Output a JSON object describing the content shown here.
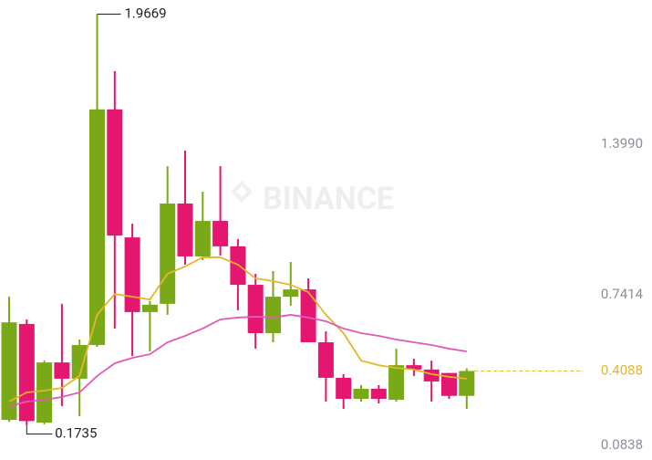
{
  "chart_data": {
    "type": "candlestick",
    "watermark": "BINANCE",
    "ylim": [
      0.0359,
      2.0288
    ],
    "yticks": [
      0.0838,
      0.7414,
      {
        "value": 1.399,
        "label": "1.3990"
      }
    ],
    "up_color": "#7aa918",
    "down_color": "#e5166f",
    "last_price_color": "#e8b52a",
    "open": [
      0.195,
      0.614,
      0.183,
      0.446,
      0.375,
      0.522,
      1.551,
      0.992,
      0.666,
      0.702,
      1.14,
      0.909,
      1.064,
      0.953,
      0.785,
      0.574,
      0.733,
      0.765,
      0.534,
      0.379,
      0.287,
      0.331,
      0.283,
      0.434,
      0.415,
      0.4,
      0.3
    ],
    "high": [
      0.733,
      0.634,
      0.454,
      0.702,
      0.546,
      1.9669,
      1.718,
      1.052,
      0.714,
      1.303,
      1.371,
      1.192,
      1.303,
      0.985,
      0.833,
      0.845,
      0.885,
      0.813,
      0.582,
      0.395,
      0.347,
      0.347,
      0.506,
      0.462,
      0.454,
      0.4,
      0.42
    ],
    "low": [
      0.187,
      0.1735,
      0.176,
      0.255,
      0.211,
      0.514,
      0.594,
      0.474,
      0.494,
      0.654,
      0.873,
      0.893,
      0.913,
      0.674,
      0.506,
      0.534,
      0.694,
      0.534,
      0.275,
      0.243,
      0.275,
      0.267,
      0.275,
      0.387,
      0.275,
      0.287,
      0.243
    ],
    "close": [
      0.621,
      0.19,
      0.446,
      0.375,
      0.522,
      1.551,
      1.0,
      0.666,
      0.698,
      1.14,
      0.909,
      1.064,
      0.953,
      0.785,
      0.574,
      0.733,
      0.765,
      0.534,
      0.379,
      0.287,
      0.331,
      0.287,
      0.434,
      0.415,
      0.363,
      0.3,
      0.4088
    ],
    "series": [
      {
        "color": "#e8b52a",
        "values": [
          0.275,
          0.315,
          0.323,
          0.335,
          0.387,
          0.654,
          0.745,
          0.733,
          0.721,
          0.833,
          0.865,
          0.905,
          0.905,
          0.873,
          0.813,
          0.801,
          0.785,
          0.753,
          0.654,
          0.574,
          0.454,
          0.434,
          0.422,
          0.415,
          0.395,
          0.383,
          0.375
        ]
      },
      {
        "color": "#e25ab8",
        "values": [
          0.255,
          0.275,
          0.283,
          0.295,
          0.315,
          0.387,
          0.442,
          0.466,
          0.482,
          0.534,
          0.562,
          0.594,
          0.634,
          0.642,
          0.646,
          0.642,
          0.654,
          0.642,
          0.626,
          0.594,
          0.574,
          0.562,
          0.546,
          0.534,
          0.522,
          0.506,
          0.494
        ]
      }
    ]
  }
}
